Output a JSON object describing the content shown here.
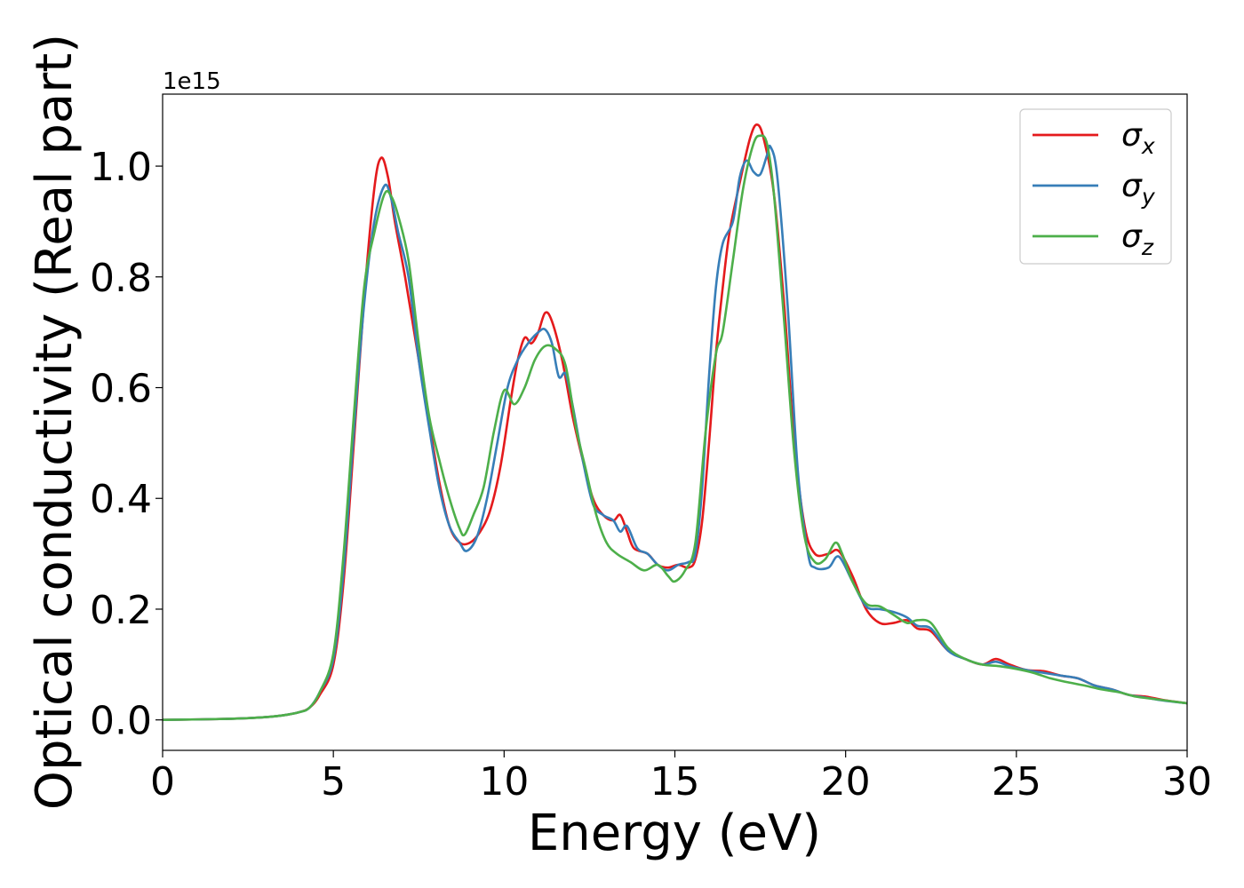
{
  "chart_data": {
    "type": "line",
    "xlabel": "Energy (eV)",
    "ylabel": "Optical conductivity (Real part)",
    "y_offset_label": "1e15",
    "xlim": [
      0,
      30
    ],
    "ylim": [
      -0.055,
      1.13
    ],
    "xticks": [
      0,
      5,
      10,
      15,
      20,
      25,
      30
    ],
    "xtick_labels": [
      "0",
      "5",
      "10",
      "15",
      "20",
      "25",
      "30"
    ],
    "yticks": [
      0.0,
      0.2,
      0.4,
      0.6,
      0.8,
      1.0
    ],
    "ytick_labels": [
      "0.0",
      "0.2",
      "0.4",
      "0.6",
      "0.8",
      "1.0"
    ],
    "grid": false,
    "legend_position": "top-right",
    "series": [
      {
        "name": "σx",
        "symbol": "σ",
        "subscript": "x",
        "color": "#e41a1c",
        "points": [
          [
            0,
            0
          ],
          [
            2,
            0.002
          ],
          [
            3,
            0.005
          ],
          [
            3.5,
            0.008
          ],
          [
            4,
            0.014
          ],
          [
            4.3,
            0.022
          ],
          [
            4.6,
            0.045
          ],
          [
            5,
            0.1
          ],
          [
            5.3,
            0.25
          ],
          [
            5.6,
            0.5
          ],
          [
            5.9,
            0.76
          ],
          [
            6.2,
            0.96
          ],
          [
            6.4,
            1.015
          ],
          [
            6.6,
            0.98
          ],
          [
            6.8,
            0.9
          ],
          [
            7.1,
            0.8
          ],
          [
            7.5,
            0.65
          ],
          [
            7.8,
            0.54
          ],
          [
            8.1,
            0.43
          ],
          [
            8.4,
            0.35
          ],
          [
            8.7,
            0.32
          ],
          [
            9.0,
            0.32
          ],
          [
            9.3,
            0.34
          ],
          [
            9.6,
            0.38
          ],
          [
            9.9,
            0.46
          ],
          [
            10.2,
            0.58
          ],
          [
            10.4,
            0.65
          ],
          [
            10.6,
            0.69
          ],
          [
            10.8,
            0.68
          ],
          [
            11.0,
            0.7
          ],
          [
            11.2,
            0.735
          ],
          [
            11.4,
            0.72
          ],
          [
            11.7,
            0.65
          ],
          [
            12.0,
            0.55
          ],
          [
            12.3,
            0.47
          ],
          [
            12.6,
            0.4
          ],
          [
            12.9,
            0.37
          ],
          [
            13.2,
            0.36
          ],
          [
            13.4,
            0.37
          ],
          [
            13.6,
            0.34
          ],
          [
            13.8,
            0.31
          ],
          [
            14.2,
            0.3
          ],
          [
            14.5,
            0.28
          ],
          [
            14.8,
            0.275
          ],
          [
            15.1,
            0.28
          ],
          [
            15.4,
            0.275
          ],
          [
            15.6,
            0.29
          ],
          [
            15.8,
            0.36
          ],
          [
            16.0,
            0.5
          ],
          [
            16.2,
            0.66
          ],
          [
            16.4,
            0.78
          ],
          [
            16.6,
            0.88
          ],
          [
            16.9,
            0.97
          ],
          [
            17.2,
            1.05
          ],
          [
            17.4,
            1.075
          ],
          [
            17.6,
            1.05
          ],
          [
            17.9,
            0.95
          ],
          [
            18.2,
            0.75
          ],
          [
            18.5,
            0.5
          ],
          [
            18.8,
            0.35
          ],
          [
            19.1,
            0.3
          ],
          [
            19.5,
            0.3
          ],
          [
            19.8,
            0.305
          ],
          [
            20.2,
            0.26
          ],
          [
            20.6,
            0.2
          ],
          [
            21.0,
            0.175
          ],
          [
            21.4,
            0.175
          ],
          [
            21.8,
            0.18
          ],
          [
            22.1,
            0.165
          ],
          [
            22.5,
            0.16
          ],
          [
            23.0,
            0.125
          ],
          [
            23.5,
            0.11
          ],
          [
            24.0,
            0.1
          ],
          [
            24.4,
            0.11
          ],
          [
            24.8,
            0.1
          ],
          [
            25.3,
            0.09
          ],
          [
            25.8,
            0.088
          ],
          [
            26.3,
            0.08
          ],
          [
            26.8,
            0.075
          ],
          [
            27.3,
            0.062
          ],
          [
            27.8,
            0.055
          ],
          [
            28.3,
            0.045
          ],
          [
            28.8,
            0.042
          ],
          [
            29.3,
            0.036
          ],
          [
            30,
            0.03
          ]
        ]
      },
      {
        "name": "σy",
        "symbol": "σ",
        "subscript": "y",
        "color": "#377eb8",
        "points": [
          [
            0,
            0
          ],
          [
            2,
            0.002
          ],
          [
            3,
            0.005
          ],
          [
            3.5,
            0.008
          ],
          [
            4,
            0.014
          ],
          [
            4.3,
            0.022
          ],
          [
            4.6,
            0.05
          ],
          [
            5,
            0.11
          ],
          [
            5.3,
            0.27
          ],
          [
            5.6,
            0.52
          ],
          [
            5.9,
            0.75
          ],
          [
            6.2,
            0.9
          ],
          [
            6.5,
            0.965
          ],
          [
            6.7,
            0.94
          ],
          [
            6.9,
            0.88
          ],
          [
            7.2,
            0.8
          ],
          [
            7.5,
            0.65
          ],
          [
            7.8,
            0.53
          ],
          [
            8.1,
            0.42
          ],
          [
            8.4,
            0.35
          ],
          [
            8.7,
            0.32
          ],
          [
            8.9,
            0.305
          ],
          [
            9.2,
            0.33
          ],
          [
            9.5,
            0.4
          ],
          [
            9.8,
            0.5
          ],
          [
            10.1,
            0.6
          ],
          [
            10.4,
            0.65
          ],
          [
            10.7,
            0.68
          ],
          [
            11.0,
            0.7
          ],
          [
            11.2,
            0.705
          ],
          [
            11.4,
            0.68
          ],
          [
            11.6,
            0.62
          ],
          [
            11.8,
            0.625
          ],
          [
            12.0,
            0.57
          ],
          [
            12.3,
            0.47
          ],
          [
            12.6,
            0.39
          ],
          [
            12.9,
            0.37
          ],
          [
            13.2,
            0.36
          ],
          [
            13.4,
            0.34
          ],
          [
            13.6,
            0.35
          ],
          [
            13.9,
            0.31
          ],
          [
            14.2,
            0.3
          ],
          [
            14.5,
            0.28
          ],
          [
            14.8,
            0.27
          ],
          [
            15.1,
            0.28
          ],
          [
            15.4,
            0.285
          ],
          [
            15.6,
            0.3
          ],
          [
            15.8,
            0.42
          ],
          [
            16.0,
            0.62
          ],
          [
            16.2,
            0.78
          ],
          [
            16.4,
            0.86
          ],
          [
            16.7,
            0.9
          ],
          [
            16.9,
            0.98
          ],
          [
            17.1,
            1.01
          ],
          [
            17.3,
            0.99
          ],
          [
            17.5,
            0.985
          ],
          [
            17.7,
            1.02
          ],
          [
            17.8,
            1.035
          ],
          [
            18.0,
            0.98
          ],
          [
            18.3,
            0.75
          ],
          [
            18.6,
            0.45
          ],
          [
            18.9,
            0.3
          ],
          [
            19.1,
            0.275
          ],
          [
            19.5,
            0.275
          ],
          [
            19.8,
            0.295
          ],
          [
            20.2,
            0.25
          ],
          [
            20.6,
            0.205
          ],
          [
            21.0,
            0.2
          ],
          [
            21.4,
            0.195
          ],
          [
            21.8,
            0.185
          ],
          [
            22.1,
            0.17
          ],
          [
            22.5,
            0.165
          ],
          [
            23.0,
            0.125
          ],
          [
            23.5,
            0.11
          ],
          [
            24.0,
            0.1
          ],
          [
            24.4,
            0.105
          ],
          [
            24.8,
            0.097
          ],
          [
            25.3,
            0.09
          ],
          [
            25.8,
            0.085
          ],
          [
            26.3,
            0.08
          ],
          [
            26.8,
            0.075
          ],
          [
            27.3,
            0.062
          ],
          [
            27.8,
            0.055
          ],
          [
            28.3,
            0.045
          ],
          [
            28.8,
            0.04
          ],
          [
            29.3,
            0.035
          ],
          [
            30,
            0.03
          ]
        ]
      },
      {
        "name": "σz",
        "symbol": "σ",
        "subscript": "z",
        "color": "#4daf4a",
        "points": [
          [
            0,
            0
          ],
          [
            2,
            0.002
          ],
          [
            3,
            0.005
          ],
          [
            3.5,
            0.008
          ],
          [
            4,
            0.014
          ],
          [
            4.3,
            0.022
          ],
          [
            4.6,
            0.05
          ],
          [
            5,
            0.12
          ],
          [
            5.3,
            0.3
          ],
          [
            5.6,
            0.55
          ],
          [
            5.9,
            0.78
          ],
          [
            6.2,
            0.88
          ],
          [
            6.5,
            0.95
          ],
          [
            6.7,
            0.945
          ],
          [
            6.9,
            0.91
          ],
          [
            7.2,
            0.83
          ],
          [
            7.5,
            0.68
          ],
          [
            7.8,
            0.55
          ],
          [
            8.1,
            0.47
          ],
          [
            8.4,
            0.4
          ],
          [
            8.7,
            0.345
          ],
          [
            8.85,
            0.335
          ],
          [
            9.1,
            0.37
          ],
          [
            9.4,
            0.42
          ],
          [
            9.7,
            0.52
          ],
          [
            10.0,
            0.595
          ],
          [
            10.3,
            0.57
          ],
          [
            10.6,
            0.6
          ],
          [
            10.9,
            0.65
          ],
          [
            11.2,
            0.675
          ],
          [
            11.5,
            0.67
          ],
          [
            11.8,
            0.64
          ],
          [
            12.1,
            0.53
          ],
          [
            12.4,
            0.45
          ],
          [
            12.7,
            0.37
          ],
          [
            13.0,
            0.32
          ],
          [
            13.3,
            0.3
          ],
          [
            13.7,
            0.285
          ],
          [
            14.1,
            0.27
          ],
          [
            14.5,
            0.28
          ],
          [
            14.8,
            0.26
          ],
          [
            15.0,
            0.25
          ],
          [
            15.3,
            0.27
          ],
          [
            15.6,
            0.32
          ],
          [
            15.9,
            0.52
          ],
          [
            16.2,
            0.66
          ],
          [
            16.4,
            0.7
          ],
          [
            16.7,
            0.83
          ],
          [
            17.0,
            0.96
          ],
          [
            17.3,
            1.04
          ],
          [
            17.5,
            1.055
          ],
          [
            17.7,
            1.04
          ],
          [
            17.9,
            0.95
          ],
          [
            18.2,
            0.72
          ],
          [
            18.5,
            0.48
          ],
          [
            18.8,
            0.33
          ],
          [
            19.1,
            0.285
          ],
          [
            19.4,
            0.29
          ],
          [
            19.7,
            0.32
          ],
          [
            19.9,
            0.3
          ],
          [
            20.2,
            0.25
          ],
          [
            20.6,
            0.21
          ],
          [
            21.0,
            0.205
          ],
          [
            21.4,
            0.19
          ],
          [
            21.8,
            0.175
          ],
          [
            22.1,
            0.18
          ],
          [
            22.5,
            0.175
          ],
          [
            23.0,
            0.13
          ],
          [
            23.5,
            0.11
          ],
          [
            24.0,
            0.1
          ],
          [
            24.5,
            0.097
          ],
          [
            25.0,
            0.092
          ],
          [
            25.5,
            0.085
          ],
          [
            26.0,
            0.075
          ],
          [
            26.5,
            0.068
          ],
          [
            27.0,
            0.062
          ],
          [
            27.5,
            0.055
          ],
          [
            28.0,
            0.05
          ],
          [
            28.5,
            0.042
          ],
          [
            29.0,
            0.038
          ],
          [
            29.5,
            0.034
          ],
          [
            30,
            0.03
          ]
        ]
      }
    ]
  }
}
